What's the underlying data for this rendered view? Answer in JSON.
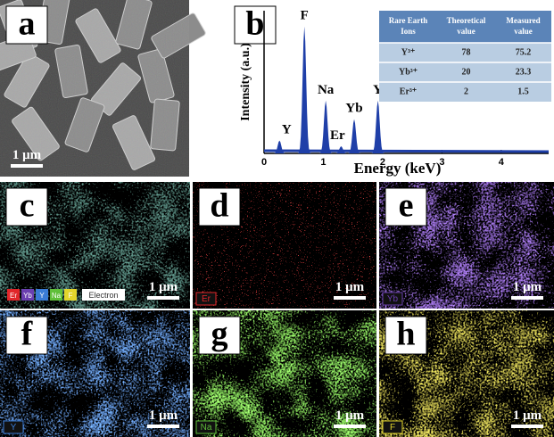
{
  "panels": [
    {
      "letter": "a",
      "scale_bar": "1 μm"
    },
    {
      "letter": "b"
    },
    {
      "letter": "c",
      "legend": [
        "Er",
        "Yb",
        "Y",
        "Na",
        "F"
      ],
      "legend_extra": "Electron",
      "scale_bar": "1 μm"
    },
    {
      "letter": "d",
      "element": "Er",
      "scale_bar": "1 μm"
    },
    {
      "letter": "e",
      "element": "Yb",
      "scale_bar": "1 μm"
    },
    {
      "letter": "f",
      "element": "Y",
      "scale_bar": "1 μm"
    },
    {
      "letter": "g",
      "element": "Na",
      "scale_bar": "1 μm"
    },
    {
      "letter": "h",
      "element": "F",
      "scale_bar": "1 μm"
    }
  ],
  "chart_data": {
    "type": "peaks",
    "xlabel": "Energy (keV)",
    "ylabel": "Intensity (a.u.)",
    "xlim": [
      0,
      4.8
    ],
    "xticks": [
      0,
      1,
      2,
      3,
      4
    ],
    "ylim": [
      0,
      100
    ],
    "color": "#1f3fa8",
    "labels": [
      "Y",
      "F",
      "Na",
      "Er",
      "Yb",
      "Y"
    ],
    "x": [
      0.26,
      0.68,
      1.04,
      1.3,
      1.52,
      1.92
    ],
    "values": [
      9,
      89,
      37,
      5,
      24,
      37
    ]
  },
  "table": {
    "header": [
      "Rare Earth Ions",
      "Theoretical value",
      "Measured value"
    ],
    "rows": [
      [
        "Y³⁺",
        78,
        75.2
      ],
      [
        "Yb³⁺",
        20,
        23.3
      ],
      [
        "Er³⁺",
        2,
        1.5
      ]
    ]
  }
}
